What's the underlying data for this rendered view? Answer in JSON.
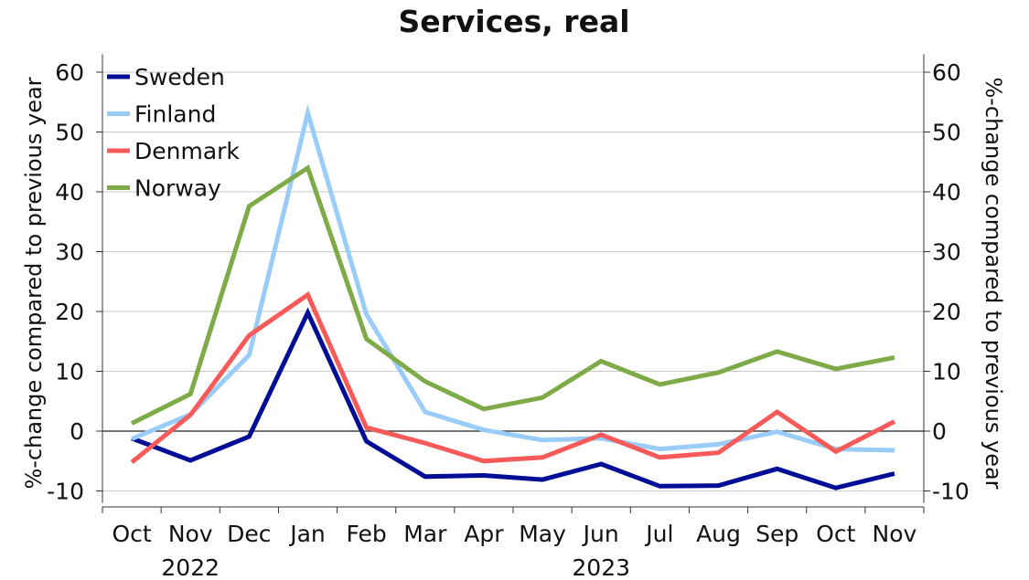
{
  "chart_data": {
    "type": "line",
    "title": "Services, real",
    "ylabel_left": "%-change compared to previous year",
    "ylabel_right": "%-change compared to previous year",
    "ylim": [
      -12,
      63
    ],
    "yticks": [
      60,
      50,
      40,
      30,
      20,
      10,
      0,
      -10
    ],
    "categories": [
      "Oct",
      "Nov",
      "Dec",
      "Jan",
      "Feb",
      "Mar",
      "Apr",
      "May",
      "Jun",
      "Jul",
      "Aug",
      "Sep",
      "Oct",
      "Nov"
    ],
    "year_labels": [
      {
        "label": "2022",
        "at_index": 1
      },
      {
        "label": "2023",
        "at_index": 8
      }
    ],
    "grid": true,
    "legend_position": "top-left",
    "series": [
      {
        "name": "Sweden",
        "color": "#000e96",
        "values": [
          -1.2,
          -4.9,
          -0.9,
          19.8,
          -1.7,
          -7.6,
          -7.4,
          -8.1,
          -5.5,
          -9.2,
          -9.1,
          -6.3,
          -9.5,
          -7.1
        ]
      },
      {
        "name": "Finland",
        "color": "#99ccf8",
        "values": [
          -1.3,
          2.8,
          12.7,
          53.2,
          19.5,
          3.2,
          0.2,
          -1.5,
          -1.2,
          -3.0,
          -2.2,
          -0.1,
          -3.0,
          -3.2
        ]
      },
      {
        "name": "Denmark",
        "color": "#f85a5a",
        "values": [
          -5.2,
          2.7,
          16.0,
          22.8,
          0.6,
          -2.0,
          -5.0,
          -4.4,
          -0.6,
          -4.4,
          -3.6,
          3.2,
          -3.4,
          1.6
        ]
      },
      {
        "name": "Norway",
        "color": "#7faa48",
        "values": [
          1.3,
          6.2,
          37.6,
          44.0,
          15.4,
          8.3,
          3.7,
          5.6,
          11.7,
          7.8,
          9.8,
          13.3,
          10.4,
          12.3
        ]
      }
    ]
  }
}
